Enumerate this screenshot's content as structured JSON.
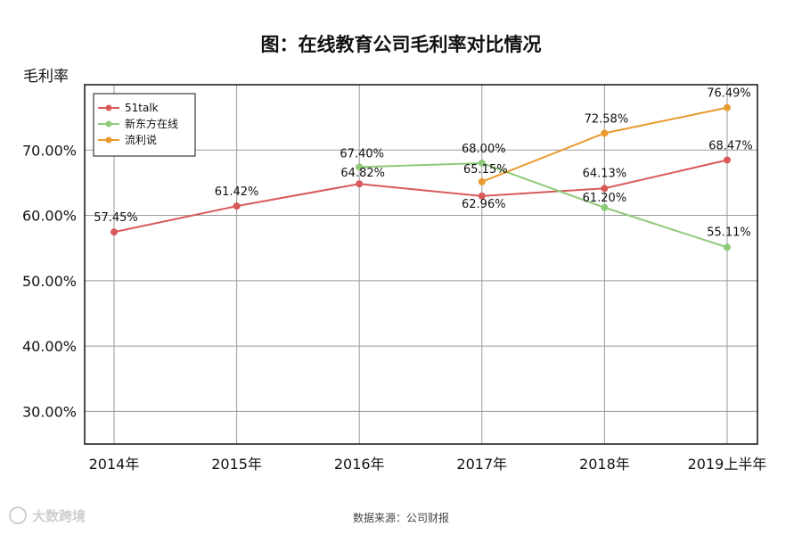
{
  "title": "图：在线教育公司毛利率对比情况",
  "source": "数据来源：公司财报",
  "watermark": "大数跨境",
  "chart_data": {
    "type": "line",
    "title": "图：在线教育公司毛利率对比情况",
    "ylabel": "毛利率",
    "xlabel": "",
    "categories": [
      "2014年",
      "2015年",
      "2016年",
      "2017年",
      "2018年",
      "2019上半年"
    ],
    "ylim": [
      25,
      80
    ],
    "yticks": [
      30,
      40,
      50,
      60,
      70
    ],
    "ytick_labels": [
      "30.00%",
      "40.00%",
      "50.00%",
      "60.00%",
      "70.00%"
    ],
    "grid": true,
    "legend_position": "top-left",
    "series": [
      {
        "name": "51talk",
        "color": "#d9595b",
        "values": [
          57.45,
          61.42,
          64.82,
          62.96,
          64.13,
          68.47
        ],
        "labels": [
          "57.45%",
          "61.42%",
          "64.82%",
          "62.96%",
          "64.13%",
          "68.47%"
        ]
      },
      {
        "name": "新东方在线",
        "color": "#8fc97b",
        "values": [
          null,
          null,
          67.4,
          68.0,
          61.2,
          55.11
        ],
        "labels": [
          null,
          null,
          "67.40%",
          "68.00%",
          "61.20%",
          "55.11%"
        ]
      },
      {
        "name": "流利说",
        "color": "#e89a2c",
        "values": [
          null,
          null,
          null,
          65.15,
          72.58,
          76.49
        ],
        "labels": [
          null,
          null,
          null,
          "65.15%",
          "72.58%",
          "76.49%"
        ]
      }
    ]
  }
}
